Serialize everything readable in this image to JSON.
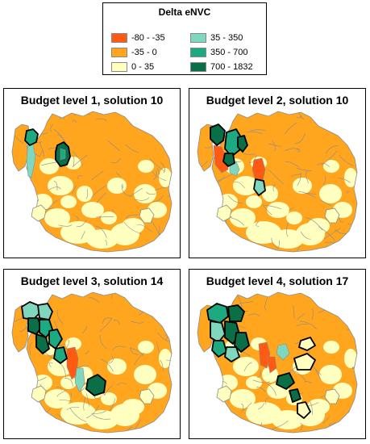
{
  "legend": {
    "title": "Delta eNVC",
    "items": [
      {
        "label": "-80 - -35",
        "color": "#ff5a14"
      },
      {
        "label": "-35 - 0",
        "color": "#ffa51e"
      },
      {
        "label": "0 - 35",
        "color": "#ffffc0"
      },
      {
        "label": "35 - 350",
        "color": "#7fd8be"
      },
      {
        "label": "350 - 700",
        "color": "#1eaa80"
      },
      {
        "label": "700 - 1832",
        "color": "#0a6e46"
      }
    ]
  },
  "panels": [
    {
      "title": "Budget level 1, solution 10"
    },
    {
      "title": "Budget level 2, solution 10"
    },
    {
      "title": "Budget level 3, solution 14"
    },
    {
      "title": "Budget level 4, solution 17"
    }
  ],
  "colors": {
    "orange": "#ffa51e",
    "yellow": "#ffffc0",
    "red": "#ff5a14",
    "teal_light": "#7fd8be",
    "teal_mid": "#1eaa80",
    "teal_dark": "#0a6e46",
    "border": "#8c8c8c"
  }
}
